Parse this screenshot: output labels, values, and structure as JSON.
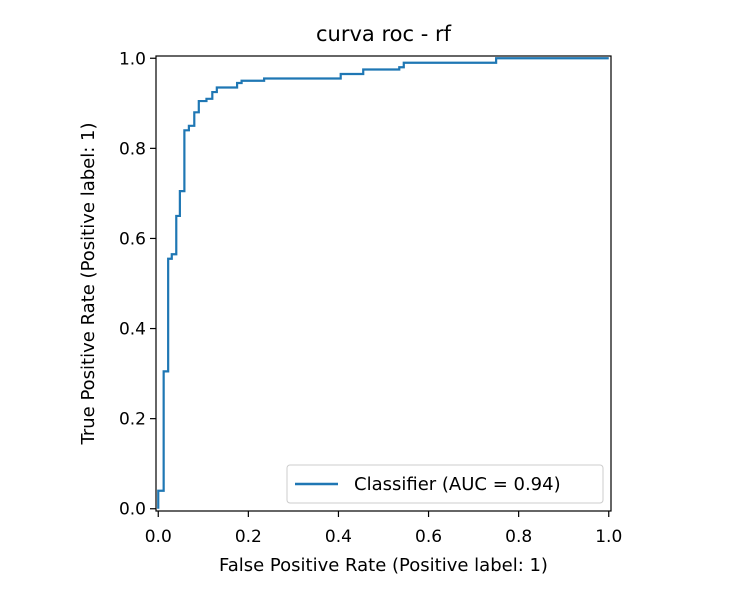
{
  "chart_data": {
    "type": "line",
    "title": "curva roc - rf",
    "xlabel": "False Positive Rate (Positive label: 1)",
    "ylabel": "True Positive Rate (Positive label: 1)",
    "xlim": [
      -0.005,
      1.005
    ],
    "ylim": [
      -0.005,
      1.005
    ],
    "xticks": [
      0.0,
      0.2,
      0.4,
      0.6,
      0.8,
      1.0
    ],
    "yticks": [
      0.0,
      0.2,
      0.4,
      0.6,
      0.8,
      1.0
    ],
    "xtick_labels": [
      "0.0",
      "0.2",
      "0.4",
      "0.6",
      "0.8",
      "1.0"
    ],
    "ytick_labels": [
      "0.0",
      "0.2",
      "0.4",
      "0.6",
      "0.8",
      "1.0"
    ],
    "grid": false,
    "legend_position": "lower-right",
    "series": [
      {
        "name": "Classifier (AUC = 0.94)",
        "color": "#1f77b4",
        "points": [
          [
            0.0,
            0.0
          ],
          [
            0.0,
            0.04
          ],
          [
            0.012,
            0.04
          ],
          [
            0.012,
            0.305
          ],
          [
            0.022,
            0.305
          ],
          [
            0.022,
            0.555
          ],
          [
            0.03,
            0.555
          ],
          [
            0.03,
            0.565
          ],
          [
            0.04,
            0.565
          ],
          [
            0.04,
            0.65
          ],
          [
            0.048,
            0.65
          ],
          [
            0.048,
            0.705
          ],
          [
            0.058,
            0.705
          ],
          [
            0.058,
            0.84
          ],
          [
            0.068,
            0.84
          ],
          [
            0.068,
            0.85
          ],
          [
            0.08,
            0.85
          ],
          [
            0.08,
            0.88
          ],
          [
            0.09,
            0.88
          ],
          [
            0.09,
            0.905
          ],
          [
            0.107,
            0.905
          ],
          [
            0.107,
            0.91
          ],
          [
            0.12,
            0.91
          ],
          [
            0.12,
            0.925
          ],
          [
            0.13,
            0.925
          ],
          [
            0.13,
            0.935
          ],
          [
            0.175,
            0.935
          ],
          [
            0.175,
            0.945
          ],
          [
            0.185,
            0.945
          ],
          [
            0.185,
            0.95
          ],
          [
            0.235,
            0.95
          ],
          [
            0.235,
            0.955
          ],
          [
            0.405,
            0.955
          ],
          [
            0.405,
            0.965
          ],
          [
            0.455,
            0.965
          ],
          [
            0.455,
            0.975
          ],
          [
            0.535,
            0.975
          ],
          [
            0.535,
            0.98
          ],
          [
            0.545,
            0.98
          ],
          [
            0.545,
            0.99
          ],
          [
            0.75,
            0.99
          ],
          [
            0.75,
            1.0
          ],
          [
            1.0,
            1.0
          ]
        ]
      }
    ]
  }
}
